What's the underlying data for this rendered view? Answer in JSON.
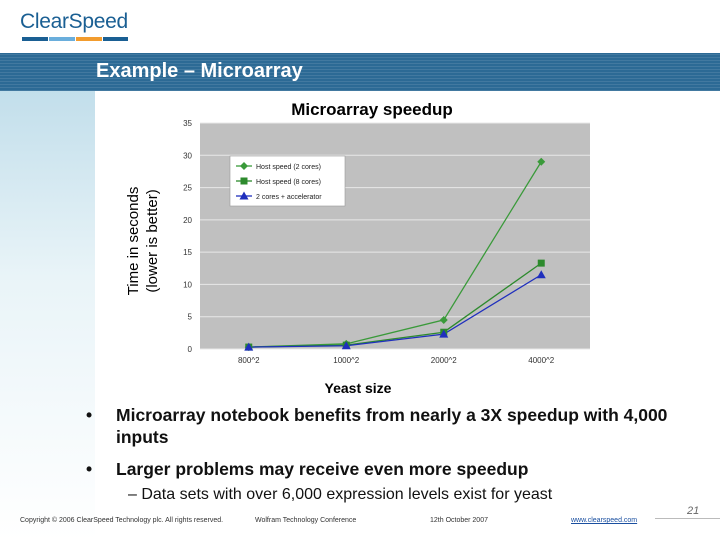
{
  "logo": {
    "text": "ClearSpeed",
    "colors": [
      "#1a5f93",
      "#6aaedc",
      "#f29c2e",
      "#1a5f93"
    ]
  },
  "slide": {
    "title": "Example – Microarray"
  },
  "chart_data": {
    "type": "line",
    "title": "Microarray speedup",
    "xlabel": "Yeast size",
    "ylabel_line1": "Time in seconds",
    "ylabel_line2": "(lower is better)",
    "categories": [
      "800^2",
      "1000^2",
      "2000^2",
      "4000^2"
    ],
    "ylim": [
      0,
      35
    ],
    "yticks": [
      0,
      5,
      10,
      15,
      20,
      25,
      30,
      35
    ],
    "grid": true,
    "legend": "top-left",
    "series": [
      {
        "name": "Host speed (2 cores)",
        "marker": "diamond",
        "color": "#3a9a3a",
        "values": [
          0.3,
          0.8,
          4.5,
          29
        ]
      },
      {
        "name": "Host speed (8 cores)",
        "marker": "square",
        "color": "#2d8a2d",
        "values": [
          0.3,
          0.6,
          2.6,
          13.3
        ]
      },
      {
        "name": "2 cores + accelerator",
        "marker": "triangle",
        "color": "#1f2fbd",
        "values": [
          0.3,
          0.5,
          2.3,
          11.5
        ]
      }
    ]
  },
  "bullets": {
    "b1": "Microarray notebook benefits from nearly a 3X speedup with 4,000 inputs",
    "b2": "Larger problems may receive even more speedup",
    "sub": "– Data sets with over 6,000 expression levels exist for yeast",
    "bullet_char": "•"
  },
  "footer": {
    "copyright": "Copyright © 2006 ClearSpeed Technology plc. All rights reserved.",
    "conference": "Wolfram Technology Conference",
    "date": "12th October 2007",
    "url": "www.clearspeed.com",
    "page": "21"
  }
}
